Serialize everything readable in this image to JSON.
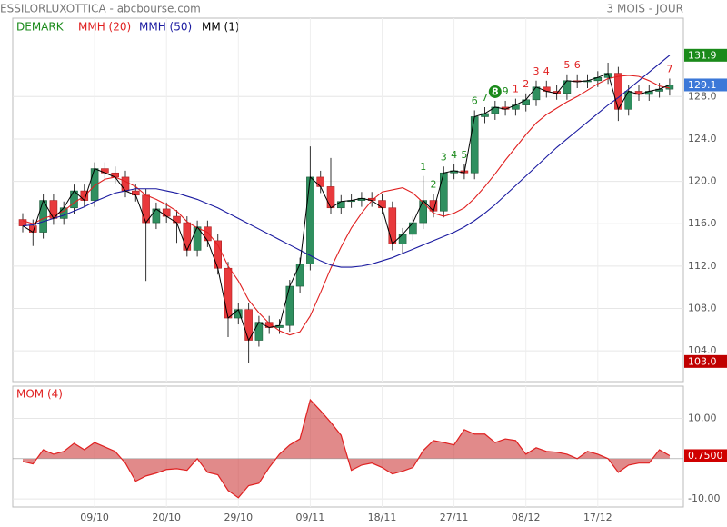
{
  "chart_data": {
    "type": "candlestick",
    "title": "ESSILORLUXOTTICA - abcbourse.com",
    "subtitle": "3 MOIS - JOUR",
    "categories": [
      null,
      null,
      null,
      null,
      null,
      null,
      null,
      "09/10",
      null,
      null,
      null,
      null,
      null,
      null,
      "20/10",
      null,
      null,
      null,
      null,
      null,
      null,
      "29/10",
      null,
      null,
      null,
      null,
      null,
      null,
      "09/11",
      null,
      null,
      null,
      null,
      null,
      null,
      "18/11",
      null,
      null,
      null,
      null,
      null,
      null,
      "27/11",
      null,
      null,
      null,
      null,
      null,
      null,
      "08/12",
      null,
      null,
      null,
      null,
      null,
      null,
      "17/12",
      null,
      null,
      null,
      null,
      null,
      null,
      null
    ],
    "open": [
      116.4,
      115.8,
      115.2,
      118.2,
      116.5,
      117.5,
      119.1,
      118.2,
      121.2,
      120.8,
      120.4,
      119.1,
      118.7,
      116.1,
      117.4,
      116.7,
      116.1,
      113.5,
      115.7,
      114.4,
      111.8,
      107.1,
      107.9,
      105.0,
      106.7,
      106.2,
      106.4,
      110.1,
      112.2,
      120.4,
      119.5,
      117.5,
      118.1,
      118.2,
      118.4,
      118.2,
      117.5,
      114.1,
      115.0,
      116.1,
      118.2,
      117.2,
      120.8,
      121.0,
      120.8,
      126.1,
      126.4,
      127.0,
      126.8,
      127.2,
      127.7,
      128.9,
      128.5,
      128.3,
      129.5,
      129.4,
      129.5,
      129.8,
      130.2,
      126.8,
      128.5,
      128.2,
      128.5,
      128.7
    ],
    "high": [
      117.0,
      116.4,
      118.8,
      118.8,
      118.1,
      119.7,
      119.7,
      121.8,
      121.8,
      121.4,
      121.0,
      119.7,
      119.3,
      118.0,
      118.0,
      117.3,
      116.7,
      116.3,
      116.3,
      115.0,
      112.4,
      108.5,
      108.5,
      107.3,
      107.3,
      107.0,
      110.7,
      112.8,
      123.3,
      121.0,
      122.2,
      118.7,
      118.8,
      119.0,
      119.0,
      118.8,
      118.1,
      115.6,
      116.7,
      120.5,
      118.8,
      121.4,
      121.6,
      121.6,
      126.7,
      127.0,
      127.6,
      127.6,
      127.8,
      128.3,
      129.5,
      129.5,
      129.1,
      130.1,
      130.1,
      130.1,
      130.4,
      131.2,
      130.8,
      129.1,
      129.1,
      129.1,
      129.3,
      129.7
    ],
    "low": [
      115.2,
      113.9,
      114.6,
      115.9,
      115.9,
      116.9,
      117.6,
      117.6,
      120.2,
      119.8,
      118.5,
      118.1,
      110.6,
      115.5,
      116.1,
      114.2,
      112.9,
      112.9,
      113.8,
      111.2,
      105.3,
      106.5,
      102.9,
      104.4,
      105.6,
      105.6,
      105.8,
      109.5,
      111.6,
      118.9,
      116.9,
      116.9,
      117.5,
      117.6,
      117.6,
      116.9,
      113.5,
      113.2,
      114.4,
      115.5,
      116.6,
      116.6,
      120.2,
      120.2,
      120.2,
      125.5,
      125.8,
      126.2,
      126.2,
      126.6,
      127.1,
      127.9,
      127.7,
      127.7,
      128.8,
      128.8,
      128.9,
      129.2,
      125.7,
      126.2,
      127.6,
      127.6,
      127.9,
      128.1
    ],
    "close": [
      115.8,
      115.2,
      118.2,
      116.5,
      117.5,
      119.1,
      118.2,
      121.2,
      120.8,
      120.4,
      119.1,
      118.7,
      116.1,
      117.4,
      116.7,
      116.1,
      113.5,
      115.7,
      114.4,
      111.8,
      107.1,
      107.9,
      105.0,
      106.7,
      106.2,
      106.4,
      110.1,
      112.2,
      120.4,
      119.5,
      117.5,
      118.1,
      118.2,
      118.4,
      118.2,
      117.5,
      114.1,
      115.0,
      116.1,
      118.2,
      117.2,
      120.8,
      121.0,
      120.8,
      126.1,
      126.4,
      127.0,
      126.8,
      127.2,
      127.7,
      128.9,
      128.5,
      128.3,
      129.5,
      129.4,
      129.5,
      129.8,
      130.2,
      126.8,
      128.5,
      128.2,
      128.5,
      128.7,
      129.1
    ],
    "up_color": "#2f8f5f",
    "down_color": "#e8393c",
    "ylim": [
      101.1,
      135.4
    ],
    "yticks": [
      {
        "value": 104,
        "label": "104.0"
      },
      {
        "value": 108,
        "label": "108.0"
      },
      {
        "value": 112,
        "label": "112.0"
      },
      {
        "value": 116,
        "label": "116.0"
      },
      {
        "value": 120,
        "label": "120.0"
      },
      {
        "value": 124,
        "label": "124.0"
      },
      {
        "value": 128,
        "label": "128.0"
      }
    ],
    "grid": true,
    "series": [
      {
        "name": "MMH (20)",
        "color": "#e02020",
        "values": [
          116.3,
          116.0,
          116.5,
          116.8,
          117.2,
          118.0,
          118.6,
          119.6,
          120.2,
          120.4,
          120.0,
          119.5,
          118.7,
          118.3,
          117.8,
          117.2,
          116.2,
          115.6,
          115.2,
          114.0,
          112.0,
          110.6,
          108.8,
          107.6,
          106.6,
          105.9,
          105.5,
          105.8,
          107.3,
          109.5,
          111.8,
          113.8,
          115.6,
          117.0,
          118.2,
          119.0,
          119.2,
          119.4,
          118.9,
          118.0,
          117.0,
          116.7,
          117.0,
          117.5,
          118.4,
          119.5,
          120.7,
          122.0,
          123.2,
          124.4,
          125.5,
          126.3,
          126.9,
          127.5,
          128.0,
          128.6,
          129.2,
          129.7,
          129.9,
          130.0,
          129.9,
          129.5,
          129.0,
          128.8
        ]
      },
      {
        "name": "MMH (50)",
        "color": "#1a1aa0",
        "values": [
          115.8,
          115.9,
          116.2,
          116.5,
          116.8,
          117.2,
          117.6,
          118.1,
          118.5,
          118.9,
          119.1,
          119.3,
          119.3,
          119.3,
          119.1,
          118.9,
          118.6,
          118.3,
          117.9,
          117.5,
          117.0,
          116.5,
          116.0,
          115.5,
          115.0,
          114.5,
          114.0,
          113.5,
          113.0,
          112.5,
          112.1,
          111.9,
          111.9,
          112.0,
          112.2,
          112.5,
          112.8,
          113.2,
          113.6,
          114.0,
          114.4,
          114.8,
          115.2,
          115.7,
          116.3,
          117.0,
          117.8,
          118.7,
          119.6,
          120.5,
          121.4,
          122.3,
          123.2,
          124.0,
          124.8,
          125.6,
          126.4,
          127.2,
          127.9,
          128.7,
          129.5,
          130.3,
          131.1,
          131.9
        ]
      }
    ],
    "close_line": {
      "name": "MM (1)",
      "color": "#000000"
    },
    "demark": {
      "name": "DEMARK",
      "color": "#1a8a1a",
      "countdown_color": "#e02020",
      "circled": 8,
      "setup": [
        null,
        null,
        null,
        null,
        null,
        null,
        null,
        null,
        null,
        null,
        null,
        null,
        null,
        null,
        null,
        null,
        null,
        null,
        null,
        null,
        null,
        null,
        null,
        null,
        null,
        null,
        null,
        null,
        null,
        null,
        null,
        null,
        null,
        null,
        null,
        null,
        null,
        null,
        null,
        1,
        2,
        3,
        4,
        5,
        6,
        7,
        8,
        9,
        null,
        null,
        null,
        null,
        null,
        null,
        null,
        null,
        null,
        null,
        null,
        null,
        null,
        null,
        null,
        null
      ],
      "countdown": [
        null,
        null,
        null,
        null,
        null,
        null,
        null,
        null,
        null,
        null,
        null,
        null,
        null,
        null,
        null,
        null,
        null,
        null,
        null,
        null,
        null,
        null,
        null,
        null,
        null,
        null,
        null,
        null,
        null,
        null,
        null,
        null,
        null,
        null,
        null,
        null,
        null,
        null,
        null,
        null,
        null,
        null,
        null,
        null,
        null,
        null,
        null,
        null,
        1,
        2,
        3,
        4,
        null,
        5,
        6,
        null,
        null,
        null,
        null,
        null,
        null,
        null,
        null,
        7
      ]
    },
    "price_labels": [
      {
        "value": 131.9,
        "color": "#1a8a1a"
      },
      {
        "value": 129.1,
        "color": "#3c78d8"
      },
      {
        "value": 103,
        "label": "103.0",
        "color": "#c00000"
      }
    ],
    "momentum": {
      "name": "MOM (4)",
      "color": "#e02020",
      "fill": "rgba(205,60,60,0.6)",
      "values": [
        -0.7,
        -1.3,
        2.2,
        1.1,
        1.8,
        3.8,
        2.2,
        4.0,
        2.9,
        1.8,
        -1.1,
        -5.6,
        -4.3,
        -3.6,
        -2.7,
        -2.5,
        -2.9,
        0.0,
        -3.4,
        -4.0,
        -7.9,
        -9.7,
        -6.7,
        -6.1,
        -2.2,
        1.1,
        3.4,
        4.9,
        14.6,
        11.9,
        9.0,
        5.8,
        -2.9,
        -1.6,
        -1.1,
        -2.2,
        -3.8,
        -3.1,
        -2.2,
        2.0,
        4.5,
        4.0,
        3.4,
        7.2,
        6.1,
        6.1,
        4.0,
        4.9,
        4.5,
        1.1,
        2.7,
        1.8,
        1.6,
        1.1,
        0.0,
        1.8,
        1.1,
        0.0,
        -3.4,
        -1.6,
        -1.1,
        -1.1,
        2.2,
        0.75
      ],
      "ylim": [
        -12,
        18
      ],
      "yticks": [
        {
          "value": 10,
          "label": "10.00"
        },
        {
          "value": -10,
          "label": "-10.00"
        }
      ],
      "last_label": {
        "value": 0.75,
        "label": "0.7500",
        "color": "#d00000"
      }
    }
  }
}
